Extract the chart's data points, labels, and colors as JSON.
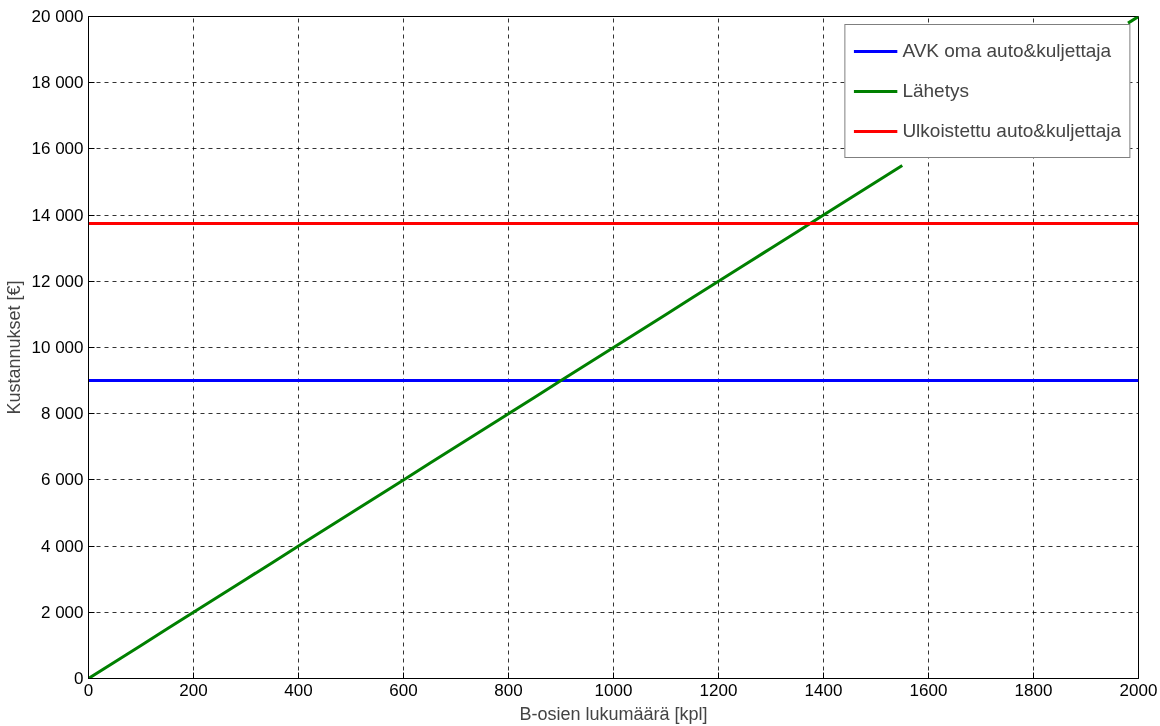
{
  "chart_data": {
    "type": "line",
    "xlabel": "B-osien lukumäärä [kpl]",
    "ylabel": "Kustannukset [€]",
    "xlim": [
      0,
      2000
    ],
    "ylim": [
      0,
      20000
    ],
    "xticks": [
      0,
      200,
      400,
      600,
      800,
      1000,
      1200,
      1400,
      1600,
      1800,
      2000
    ],
    "yticks": [
      0,
      {
        "value": 2000,
        "label": "2 000"
      },
      {
        "value": 4000,
        "label": "4 000"
      },
      {
        "value": 6000,
        "label": "6 000"
      },
      {
        "value": 8000,
        "label": "8 000"
      },
      {
        "value": 10000,
        "label": "10 000"
      },
      {
        "value": 12000,
        "label": "12 000"
      },
      {
        "value": 14000,
        "label": "14 000"
      },
      {
        "value": 16000,
        "label": "16 000"
      },
      {
        "value": 18000,
        "label": "18 000"
      },
      {
        "value": 20000,
        "label": "20 000"
      }
    ],
    "grid": true,
    "legend": "top right",
    "line_style": "solid",
    "marker": "none",
    "series": [
      {
        "name": "AVK oma auto&kuljettaja",
        "color": "#0000ff",
        "x": [
          0,
          2000
        ],
        "values": [
          9000,
          9000
        ]
      },
      {
        "name": "Lähetys",
        "color": "#008000",
        "x": [
          0,
          50,
          100,
          150,
          200,
          250,
          300,
          350,
          400,
          450,
          500,
          550,
          600,
          650,
          700,
          750,
          800,
          850,
          900,
          950,
          1000,
          1050,
          1100,
          1150,
          1200,
          1250,
          1300,
          1350,
          1400,
          1450,
          1500,
          1550,
          1600,
          1650,
          1700,
          1750,
          1800,
          1850,
          1900,
          1950,
          1980,
          2000
        ],
        "values": [
          0,
          500,
          1000,
          1500,
          2000,
          2500,
          3000,
          3500,
          4000,
          4500,
          5000,
          5500,
          6000,
          6500,
          7000,
          7500,
          8000,
          8500,
          9000,
          9500,
          10000,
          10500,
          11000,
          11500,
          12000,
          12500,
          13000,
          13500,
          14000,
          14500,
          15000,
          15500,
          null,
          null,
          null,
          null,
          null,
          null,
          null,
          null,
          19800,
          20000
        ]
      },
      {
        "name": "Ulkoistettu auto&kuljettaja",
        "color": "#ff0000",
        "x": [
          0,
          2000
        ],
        "values": [
          13750,
          13750
        ]
      }
    ]
  }
}
